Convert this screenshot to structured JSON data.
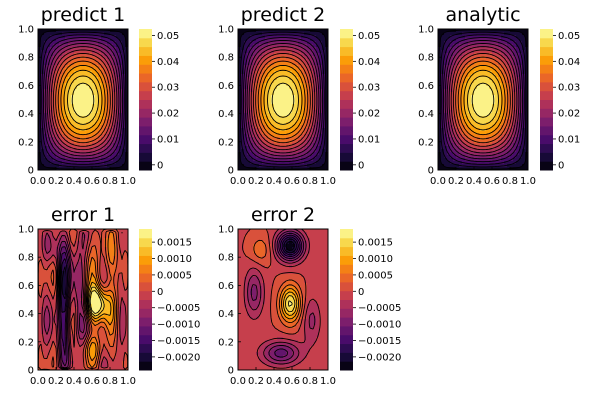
{
  "chart_data": [
    {
      "type": "heatmap",
      "title": "predict 1",
      "field": "analytic",
      "x_ticks": [
        "0.0",
        "0.2",
        "0.4",
        "0.6",
        "0.8",
        "1.0"
      ],
      "y_ticks": [
        "0",
        "0.2",
        "0.4",
        "0.6",
        "0.8",
        "1.0"
      ],
      "xlim": [
        0,
        1
      ],
      "ylim": [
        0,
        1
      ],
      "colorbar": {
        "ticks": [
          "0",
          "0.01",
          "0.02",
          "0.03",
          "0.04",
          "0.05"
        ],
        "tick_values": [
          0,
          0.01,
          0.02,
          0.03,
          0.04,
          0.05
        ],
        "range": [
          -0.002,
          0.0525
        ]
      }
    },
    {
      "type": "heatmap",
      "title": "predict 2",
      "field": "analytic",
      "x_ticks": [
        "0.0",
        "0.2",
        "0.4",
        "0.6",
        "0.8",
        "1.0"
      ],
      "y_ticks": [
        "0",
        "0.2",
        "0.4",
        "0.6",
        "0.8",
        "1.0"
      ],
      "xlim": [
        0,
        1
      ],
      "ylim": [
        0,
        1
      ],
      "colorbar": {
        "ticks": [
          "0",
          "0.01",
          "0.02",
          "0.03",
          "0.04",
          "0.05"
        ],
        "tick_values": [
          0,
          0.01,
          0.02,
          0.03,
          0.04,
          0.05
        ],
        "range": [
          -0.002,
          0.0525
        ]
      }
    },
    {
      "type": "heatmap",
      "title": "analytic",
      "field": "analytic",
      "x_ticks": [
        "0.0",
        "0.2",
        "0.4",
        "0.6",
        "0.8",
        "1.0"
      ],
      "y_ticks": [
        "0",
        "0.2",
        "0.4",
        "0.6",
        "0.8",
        "1.0"
      ],
      "xlim": [
        0,
        1
      ],
      "ylim": [
        0,
        1
      ],
      "colorbar": {
        "ticks": [
          "0",
          "0.01",
          "0.02",
          "0.03",
          "0.04",
          "0.05"
        ],
        "tick_values": [
          0,
          0.01,
          0.02,
          0.03,
          0.04,
          0.05
        ],
        "range": [
          -0.002,
          0.0525
        ]
      }
    },
    {
      "type": "heatmap",
      "title": "error 1",
      "field": "error1",
      "x_ticks": [
        "0.0",
        "0.2",
        "0.4",
        "0.6",
        "0.8",
        "1.0"
      ],
      "y_ticks": [
        "0",
        "0.2",
        "0.4",
        "0.6",
        "0.8",
        "1.0"
      ],
      "xlim": [
        0,
        1
      ],
      "ylim": [
        0,
        1
      ],
      "colorbar": {
        "ticks": [
          "0.0015",
          "0.0010",
          "0.0005",
          "0",
          "−0.0005",
          "−0.0010",
          "−0.0015",
          "−0.0020"
        ],
        "tick_values": [
          0.0015,
          0.001,
          0.0005,
          0,
          -0.0005,
          -0.001,
          -0.0015,
          -0.002
        ],
        "range": [
          -0.0024,
          0.0019
        ]
      }
    },
    {
      "type": "heatmap",
      "title": "error 2",
      "field": "error2",
      "x_ticks": [
        "0.0",
        "0.2",
        "0.4",
        "0.6",
        "0.8",
        "1.0"
      ],
      "y_ticks": [
        "0",
        "0.2",
        "0.4",
        "0.6",
        "0.8",
        "1.0"
      ],
      "xlim": [
        0,
        1
      ],
      "ylim": [
        0,
        1
      ],
      "colorbar": {
        "ticks": [
          "0.0015",
          "0.0010",
          "0.0005",
          "0",
          "−0.0005",
          "−0.0010",
          "−0.0015",
          "−0.0020"
        ],
        "tick_values": [
          0.0015,
          0.001,
          0.0005,
          0,
          -0.0005,
          -0.001,
          -0.0015,
          -0.002
        ],
        "range": [
          -0.0024,
          0.0019
        ]
      }
    }
  ],
  "colors": {
    "colormap": [
      "#000004",
      "#1b0c41",
      "#4a0c6b",
      "#781c6d",
      "#a52c60",
      "#cf4446",
      "#ed6925",
      "#fb9b06",
      "#f7d13d",
      "#fcffa4"
    ],
    "contour_line": "#000000",
    "frame": "#000000",
    "background": "#ffffff"
  }
}
